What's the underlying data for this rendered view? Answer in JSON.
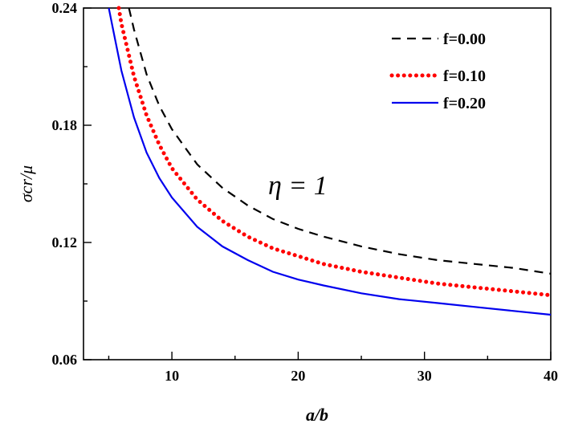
{
  "chart_data": {
    "type": "line",
    "xlabel": "a/b",
    "ylabel": "σcr/μ",
    "xlim": [
      3,
      40
    ],
    "ylim": [
      0.06,
      0.24
    ],
    "xticks": [
      10,
      20,
      30,
      40
    ],
    "yticks": [
      0.06,
      0.12,
      0.18,
      0.24
    ],
    "ytick_labels": [
      "0.06",
      "0.12",
      "0.18",
      "0.24"
    ],
    "grid": false,
    "legend_position": "top-right",
    "annotation": "η = 1",
    "series": [
      {
        "name": "f=0.00",
        "style": "dashed",
        "color": "#000000",
        "x": [
          6.6,
          7,
          8,
          9,
          10,
          12,
          14,
          16,
          18,
          20,
          22,
          25,
          28,
          31,
          34,
          37,
          40
        ],
        "y": [
          0.24,
          0.229,
          0.206,
          0.19,
          0.178,
          0.16,
          0.148,
          0.139,
          0.132,
          0.127,
          0.123,
          0.118,
          0.114,
          0.111,
          0.109,
          0.107,
          0.104
        ]
      },
      {
        "name": "f=0.10",
        "style": "dotted",
        "color": "#ff0000",
        "x": [
          5.8,
          6,
          7,
          8,
          9,
          10,
          12,
          14,
          16,
          18,
          20,
          22,
          25,
          28,
          31,
          34,
          37,
          40
        ],
        "y": [
          0.24,
          0.232,
          0.205,
          0.185,
          0.17,
          0.158,
          0.142,
          0.131,
          0.123,
          0.117,
          0.113,
          0.109,
          0.105,
          0.102,
          0.099,
          0.097,
          0.095,
          0.093
        ]
      },
      {
        "name": "f=0.20",
        "style": "solid",
        "color": "#0000ee",
        "x": [
          5.0,
          5.5,
          6,
          7,
          8,
          9,
          10,
          12,
          14,
          16,
          18,
          20,
          22,
          25,
          28,
          31,
          34,
          37,
          40
        ],
        "y": [
          0.24,
          0.224,
          0.208,
          0.184,
          0.166,
          0.153,
          0.143,
          0.128,
          0.118,
          0.111,
          0.105,
          0.101,
          0.098,
          0.094,
          0.091,
          0.089,
          0.087,
          0.085,
          0.083
        ]
      }
    ]
  }
}
